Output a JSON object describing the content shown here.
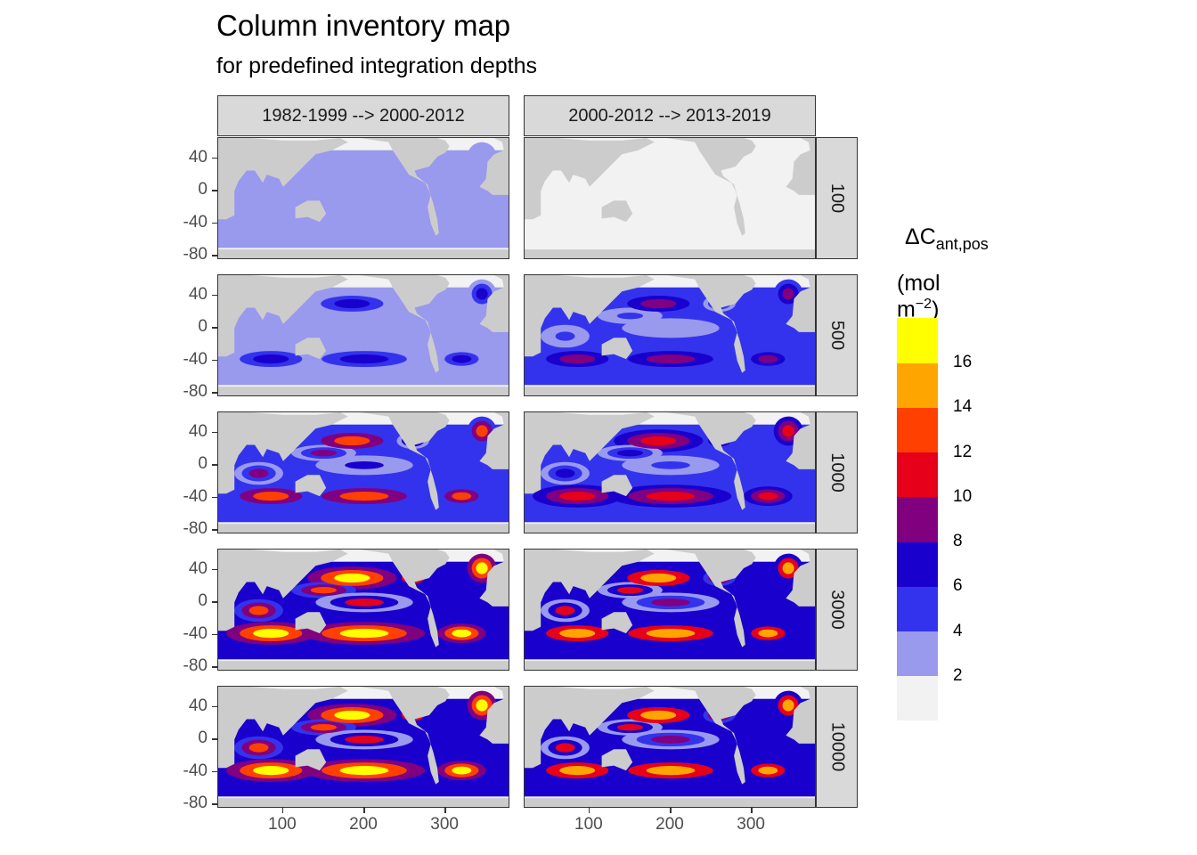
{
  "title": "Column inventory map",
  "subtitle": "for predefined integration depths",
  "chart_data": {
    "type": "heatmap",
    "facet_columns": [
      "1982-1999 --> 2000-2012",
      "2000-2012 --> 2013-2019"
    ],
    "facet_rows": [
      "100",
      "500",
      "1000",
      "3000",
      "10000"
    ],
    "x_ticks": [
      100,
      200,
      300
    ],
    "y_ticks": [
      40,
      0,
      -40,
      -80
    ],
    "x_tick_labels": [
      "100",
      "200",
      "300"
    ],
    "y_tick_labels": [
      "40",
      "0",
      "-40",
      "-80"
    ],
    "xlim": [
      20,
      380
    ],
    "ylim": [
      -85,
      65
    ],
    "legend": {
      "title_main": "ΔC",
      "title_sub": "ant,pos",
      "unit_prefix": "(mol m",
      "unit_sup": "−2",
      "unit_suffix": ")",
      "placement": "right",
      "breaks": [
        "2",
        "4",
        "6",
        "8",
        "10",
        "12",
        "14",
        "16"
      ],
      "colors": [
        "#f2f2f2",
        "#9999ee",
        "#3333ee",
        "#1a00cc",
        "#800080",
        "#e6001a",
        "#ff4000",
        "#ffa500",
        "#ffff00"
      ]
    },
    "land_color": "#cccccc",
    "panels": [
      [
        {
          "depth": "100",
          "period": "1982-1999 --> 2000-2012",
          "max_class": 1,
          "coverage": 0.1
        },
        {
          "depth": "500",
          "period": "1982-1999 --> 2000-2012",
          "max_class": 3,
          "coverage": 1.0
        },
        {
          "depth": "1000",
          "period": "1982-1999 --> 2000-2012",
          "max_class": 6,
          "coverage": 1.0
        },
        {
          "depth": "3000",
          "period": "1982-1999 --> 2000-2012",
          "max_class": 8,
          "coverage": 1.0
        },
        {
          "depth": "10000",
          "period": "1982-1999 --> 2000-2012",
          "max_class": 8,
          "coverage": 1.0
        }
      ],
      [
        {
          "depth": "100",
          "period": "2000-2012 --> 2013-2019",
          "max_class": 0,
          "coverage": 0.0
        },
        {
          "depth": "500",
          "period": "2000-2012 --> 2013-2019",
          "max_class": 4,
          "coverage": 1.0
        },
        {
          "depth": "1000",
          "period": "2000-2012 --> 2013-2019",
          "max_class": 5,
          "coverage": 1.0
        },
        {
          "depth": "3000",
          "period": "2000-2012 --> 2013-2019",
          "max_class": 7,
          "coverage": 1.0
        },
        {
          "depth": "10000",
          "period": "2000-2012 --> 2013-2019",
          "max_class": 7,
          "coverage": 1.0
        }
      ]
    ]
  }
}
